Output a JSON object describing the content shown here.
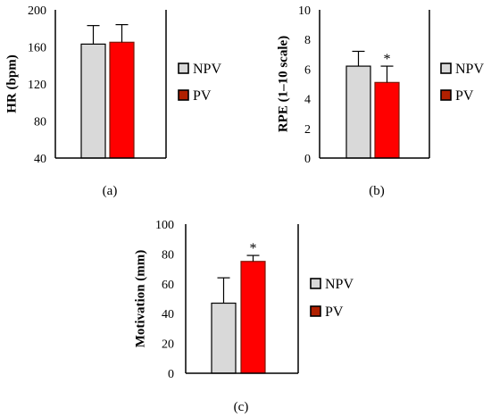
{
  "colors": {
    "NPV": "#d9d9d9",
    "PV": "#ff0000",
    "PV_outline": "#7a1a0a",
    "axis": "#000000"
  },
  "chart_data": [
    {
      "type": "bar",
      "panel": "(a)",
      "ylabel": "HR (bpm)",
      "ylim": [
        40,
        200
      ],
      "yticks": [
        "200",
        "160",
        "120",
        "80",
        "40"
      ],
      "series": [
        {
          "name": "NPV",
          "value": 163,
          "error": 20
        },
        {
          "name": "PV",
          "value": 165,
          "error": 19
        }
      ],
      "legend": [
        "NPV",
        "PV"
      ],
      "legend_position": "right",
      "significance": []
    },
    {
      "type": "bar",
      "panel": "(b)",
      "ylabel": "RPE (1–10 scale)",
      "ylim": [
        0,
        10
      ],
      "yticks": [
        "10",
        "8",
        "6",
        "4",
        "2",
        "0"
      ],
      "series": [
        {
          "name": "NPV",
          "value": 6.2,
          "error": 1.0
        },
        {
          "name": "PV",
          "value": 5.1,
          "error": 1.1
        }
      ],
      "legend": [
        "NPV",
        "PV"
      ],
      "legend_position": "right",
      "significance": [
        "*"
      ]
    },
    {
      "type": "bar",
      "panel": "(c)",
      "ylabel": "Motivation (mm)",
      "ylim": [
        0,
        100
      ],
      "yticks": [
        "100",
        "80",
        "60",
        "40",
        "20",
        "0"
      ],
      "series": [
        {
          "name": "NPV",
          "value": 47,
          "error": 17
        },
        {
          "name": "PV",
          "value": 75,
          "error": 4
        }
      ],
      "legend": [
        "NPV",
        "PV"
      ],
      "legend_position": "right",
      "significance": [
        "*"
      ]
    }
  ]
}
